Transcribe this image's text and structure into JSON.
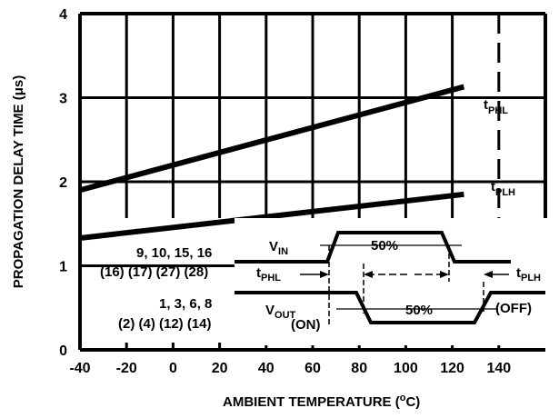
{
  "chart_data": {
    "type": "line",
    "xlabel": "AMBIENT TEMPERATURE (",
    "xlabel_sup": "o",
    "xlabel_tail": "C)",
    "ylabel": "PROPAGATION DELAY TIME (μs)",
    "xlim": [
      -40,
      160
    ],
    "ylim": [
      0,
      4
    ],
    "x_ticks": [
      "-40",
      "-20",
      "0",
      "20",
      "40",
      "60",
      "80",
      "100",
      "120",
      "140"
    ],
    "x_tick_values": [
      -40,
      -20,
      0,
      20,
      40,
      60,
      80,
      100,
      120,
      140
    ],
    "y_ticks": [
      "0",
      "1",
      "2",
      "3",
      "4"
    ],
    "y_tick_values": [
      0,
      1,
      2,
      3,
      4
    ],
    "grid": true,
    "series": [
      {
        "name": "tPHL",
        "label_main": "t",
        "label_sub": "PHL",
        "x": [
          -40,
          125
        ],
        "y": [
          1.9,
          3.13
        ]
      },
      {
        "name": "tPLH",
        "label_main": "t",
        "label_sub": "PLH",
        "x": [
          -40,
          125
        ],
        "y": [
          1.33,
          1.85
        ]
      }
    ],
    "inset": {
      "pins_in_line1": "9, 10, 15, 16",
      "pins_in_line2": "(16) (17) (27) (28)",
      "pins_out_line1": "1, 3, 6, 8",
      "pins_out_line2": "(2) (4) (12) (14)",
      "vin_main": "V",
      "vin_sub": "IN",
      "vout_main": "V",
      "vout_sub": "OUT",
      "pct_in": "50%",
      "pct_out": "50%",
      "tphl_main": "t",
      "tphl_sub": "PHL",
      "tplh_main": "t",
      "tplh_sub": "PLH",
      "on_label": "(ON)",
      "off_label": "(OFF)"
    }
  }
}
